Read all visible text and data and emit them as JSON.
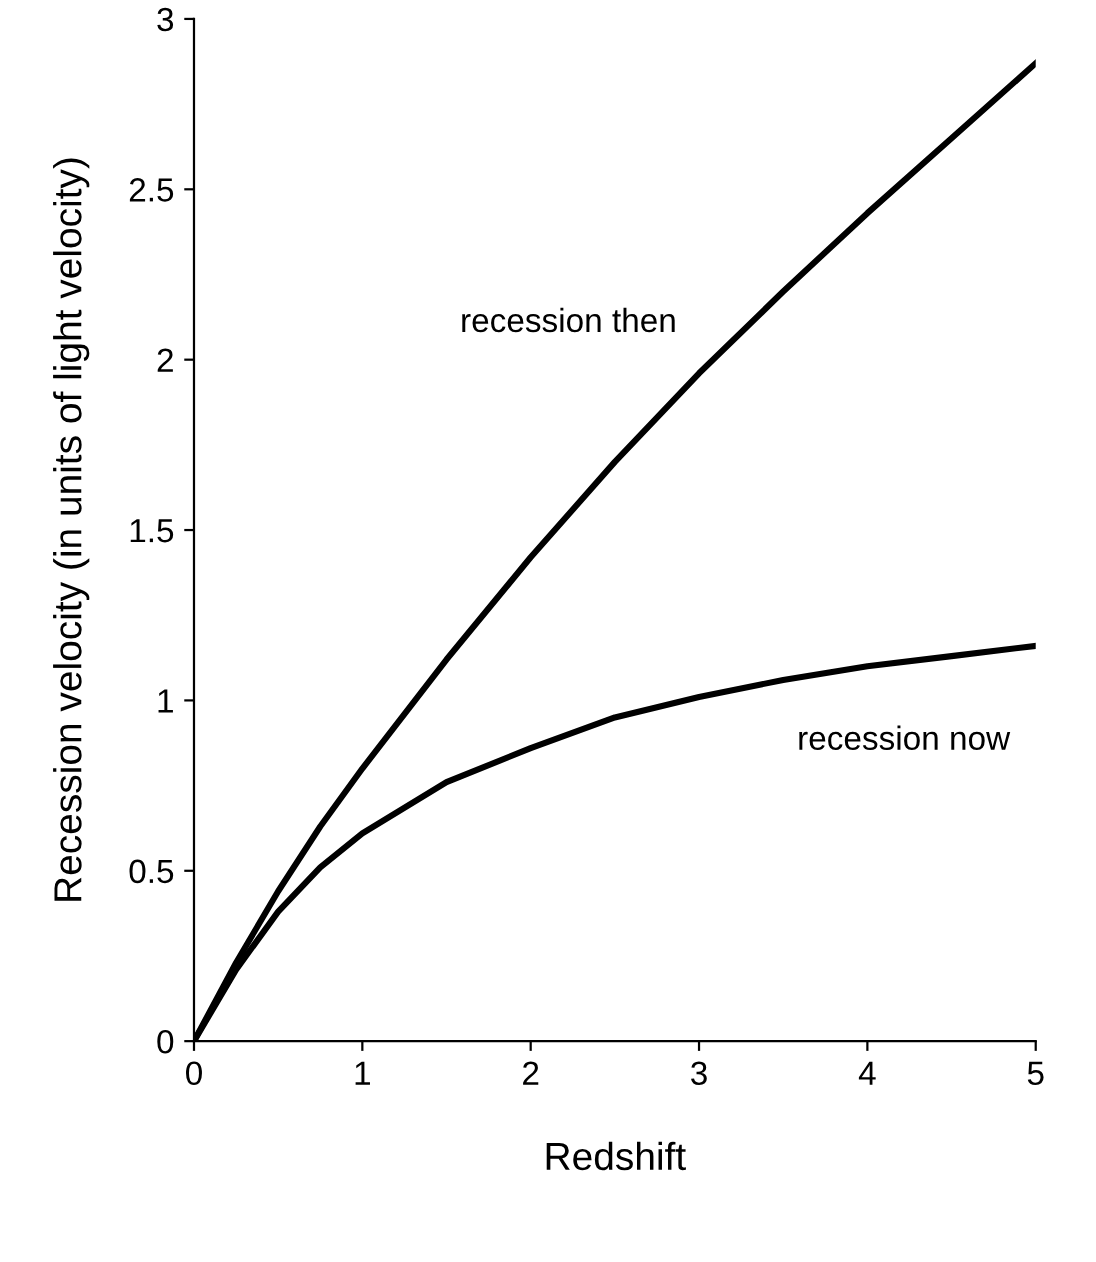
{
  "chart_data": {
    "type": "line",
    "xlabel": "Redshift",
    "ylabel": "Recession velocity (in units of light velocity)",
    "x": [
      0,
      0.25,
      0.5,
      0.75,
      1,
      1.5,
      2,
      2.5,
      3,
      3.5,
      4,
      4.5,
      5
    ],
    "series": [
      {
        "name": "recession then",
        "color": "#000000",
        "values": [
          0,
          0.23,
          0.44,
          0.63,
          0.8,
          1.12,
          1.42,
          1.7,
          1.96,
          2.2,
          2.43,
          2.65,
          2.87
        ]
      },
      {
        "name": "recession now",
        "color": "#000000",
        "values": [
          0,
          0.21,
          0.38,
          0.51,
          0.61,
          0.76,
          0.86,
          0.95,
          1.01,
          1.06,
          1.1,
          1.13,
          1.16
        ]
      }
    ],
    "xlim": [
      0,
      5
    ],
    "ylim": [
      0,
      3
    ],
    "xticks": [
      0,
      1,
      2,
      3,
      4,
      5
    ],
    "yticks": [
      0,
      0.5,
      1,
      1.5,
      2,
      2.5,
      3
    ],
    "grid": false,
    "legend": false,
    "marker": "none",
    "line_style": "solid"
  }
}
